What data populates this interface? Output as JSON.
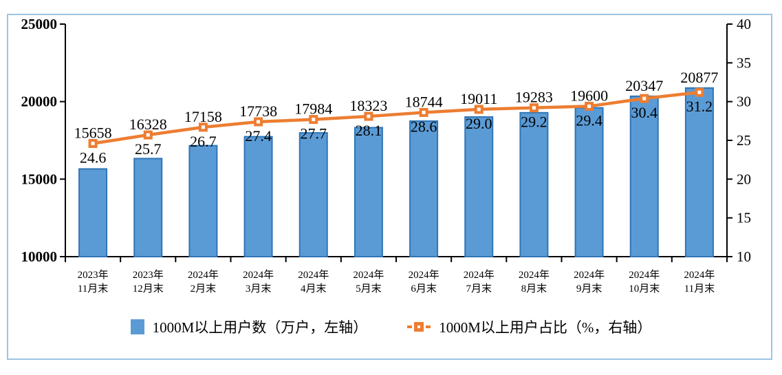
{
  "window": {
    "background_color": "#ffffff",
    "frame_border_color": "#9DC3E6"
  },
  "chart_data": {
    "type": "combo_bar_line",
    "title": "",
    "categories": [
      "2023年11月末",
      "2023年12月末",
      "2024年2月末",
      "2024年3月末",
      "2024年4月末",
      "2024年5月末",
      "2024年6月末",
      "2024年7月末",
      "2024年8月末",
      "2024年9月末",
      "2024年10月末",
      "2024年11月末"
    ],
    "categories_line1": [
      "2023年",
      "2023年",
      "2024年",
      "2024年",
      "2024年",
      "2024年",
      "2024年",
      "2024年",
      "2024年",
      "2024年",
      "2024年",
      "2024年"
    ],
    "categories_line2": [
      "11月末",
      "12月末",
      "2月末",
      "3月末",
      "4月末",
      "5月末",
      "6月末",
      "7月末",
      "8月末",
      "9月末",
      "10月末",
      "11月末"
    ],
    "series": [
      {
        "name": "1000M以上用户数（万户，左轴）",
        "type": "bar",
        "axis": "left",
        "values": [
          15658,
          16328,
          17158,
          17738,
          17984,
          18323,
          18744,
          19011,
          19283,
          19600,
          20347,
          20877
        ],
        "labels": [
          "15658",
          "16328",
          "17158",
          "17738",
          "17984",
          "18323",
          "18744",
          "19011",
          "19283",
          "19600",
          "20347",
          "20877"
        ],
        "fill_color": "#5B9BD5",
        "border_color": "#2E75B6"
      },
      {
        "name": "1000M以上用户占比（%，右轴）",
        "type": "line",
        "axis": "right",
        "values": [
          24.6,
          25.7,
          26.7,
          27.4,
          27.7,
          28.1,
          28.6,
          29.0,
          29.2,
          29.4,
          30.4,
          31.2
        ],
        "labels": [
          "24.6",
          "25.7",
          "26.7",
          "27.4",
          "27.7",
          "28.1",
          "28.6",
          "29.0",
          "29.2",
          "29.4",
          "30.4",
          "31.2"
        ],
        "line_color": "#ED7D31",
        "marker": "open-square"
      }
    ],
    "left_axis": {
      "min": 10000,
      "max": 25000,
      "step": 5000,
      "tick_labels": [
        "10000",
        "15000",
        "20000",
        "25000"
      ]
    },
    "right_axis": {
      "min": 10,
      "max": 40,
      "step": 5,
      "tick_labels": [
        "10",
        "15",
        "20",
        "25",
        "30",
        "35",
        "40"
      ]
    },
    "axis_color": "#000000",
    "label_color": "#000000",
    "grid": false,
    "legend_position": "bottom"
  }
}
